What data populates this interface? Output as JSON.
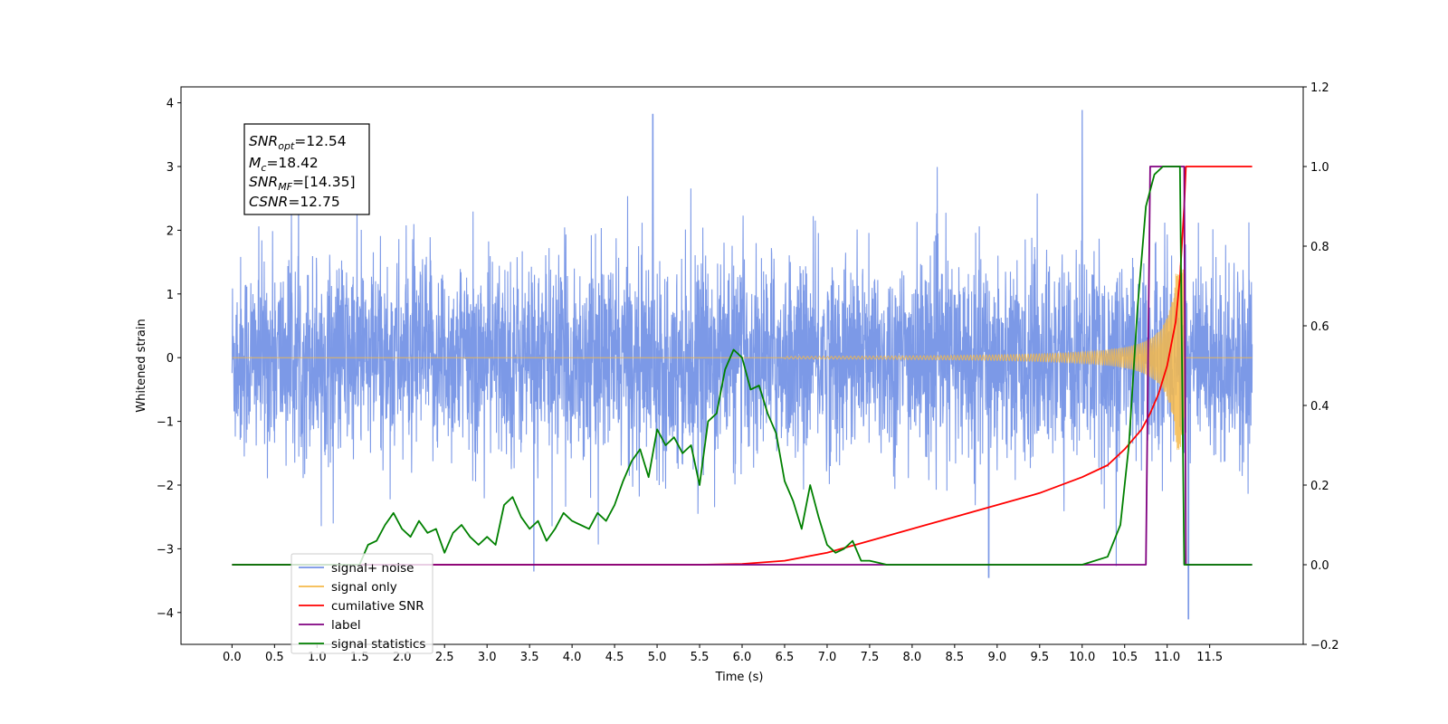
{
  "chart_data": {
    "type": "line",
    "xlabel": "Time (s)",
    "ylabel": "Whitened strain",
    "xlim": [
      -0.6,
      12.6
    ],
    "ylim_left": [
      -4.5,
      4.25
    ],
    "ylim_right": [
      -0.2,
      1.2
    ],
    "x_ticks": [
      "0.0",
      "0.5",
      "1.0",
      "1.5",
      "2.0",
      "2.5",
      "3.0",
      "3.5",
      "4.0",
      "4.5",
      "5.0",
      "5.5",
      "6.0",
      "6.5",
      "7.0",
      "7.5",
      "8.0",
      "8.5",
      "9.0",
      "9.5",
      "10.0",
      "10.5",
      "11.0",
      "11.5"
    ],
    "y_ticks_left": [
      "4",
      "3",
      "2",
      "1",
      "0",
      "−1",
      "−2",
      "−3",
      "−4"
    ],
    "y_ticks_right": [
      "1.2",
      "1.0",
      "0.8",
      "0.6",
      "0.4",
      "0.2",
      "0.0",
      "−0.2"
    ],
    "grid": false,
    "legend_position": "lower-left",
    "legend": [
      "signal+ noise",
      "signal only",
      "cumilative SNR",
      "label",
      "signal statistics"
    ],
    "annotation": {
      "snr_opt": "=12.54",
      "mc": "=18.42",
      "snr_mf": "=[14.35]",
      "csnr": "=12.75"
    },
    "series": [
      {
        "name": "signal+ noise",
        "axis": "left",
        "color": "#7593e6",
        "style": "dense noise spanning 0.0-12.0 s, typical amplitude about +/-2, spikes near 3.8 at 4.95 s and 3.9 at 10.0 s, dip near -4.1 at 11.25 s"
      },
      {
        "name": "signal only",
        "axis": "left",
        "color": "#f5b94a",
        "style": "chirp, amplitude ~0 until 7 s, growing to about +/-1.4 at 11.15 s, ending at 11.2 s"
      },
      {
        "name": "cumilative SNR",
        "axis": "right",
        "color": "#ff0000",
        "x": [
          0.0,
          5.0,
          5.5,
          6.0,
          6.5,
          7.0,
          7.5,
          8.0,
          8.5,
          9.0,
          9.5,
          10.0,
          10.3,
          10.5,
          10.7,
          10.8,
          10.9,
          11.0,
          11.1,
          11.15,
          11.2,
          11.22,
          12.0
        ],
        "y": [
          0.0,
          0.0,
          0.0,
          0.002,
          0.01,
          0.03,
          0.06,
          0.09,
          0.12,
          0.15,
          0.18,
          0.22,
          0.25,
          0.29,
          0.34,
          0.38,
          0.43,
          0.5,
          0.61,
          0.72,
          0.9,
          1.0,
          1.0
        ]
      },
      {
        "name": "label",
        "axis": "right",
        "color": "#800080",
        "x": [
          0.0,
          10.75,
          10.8,
          11.2,
          11.22,
          12.0
        ],
        "y": [
          0.0,
          0.0,
          1.0,
          1.0,
          0.0,
          0.0
        ]
      },
      {
        "name": "signal statistics",
        "axis": "right",
        "color": "#008000",
        "x": [
          0.0,
          1.5,
          1.6,
          1.7,
          1.8,
          1.9,
          2.0,
          2.1,
          2.2,
          2.3,
          2.4,
          2.5,
          2.6,
          2.7,
          2.8,
          2.9,
          3.0,
          3.1,
          3.2,
          3.3,
          3.4,
          3.5,
          3.6,
          3.7,
          3.8,
          3.9,
          4.0,
          4.1,
          4.2,
          4.3,
          4.4,
          4.5,
          4.6,
          4.7,
          4.8,
          4.9,
          5.0,
          5.1,
          5.2,
          5.3,
          5.4,
          5.5,
          5.6,
          5.7,
          5.8,
          5.9,
          6.0,
          6.1,
          6.2,
          6.3,
          6.4,
          6.5,
          6.6,
          6.7,
          6.8,
          6.9,
          7.0,
          7.1,
          7.2,
          7.3,
          7.4,
          7.5,
          7.6,
          7.7,
          7.8,
          8.0,
          8.3,
          9.0,
          10.0,
          10.3,
          10.45,
          10.55,
          10.65,
          10.75,
          10.85,
          10.95,
          11.0,
          11.1,
          11.15,
          11.2,
          11.25,
          12.0
        ],
        "y": [
          0.0,
          0.0,
          0.05,
          0.06,
          0.1,
          0.13,
          0.09,
          0.07,
          0.11,
          0.08,
          0.09,
          0.03,
          0.08,
          0.1,
          0.07,
          0.05,
          0.07,
          0.05,
          0.15,
          0.17,
          0.12,
          0.09,
          0.11,
          0.06,
          0.09,
          0.13,
          0.11,
          0.1,
          0.09,
          0.13,
          0.11,
          0.15,
          0.21,
          0.26,
          0.29,
          0.22,
          0.34,
          0.3,
          0.32,
          0.28,
          0.3,
          0.2,
          0.36,
          0.38,
          0.49,
          0.54,
          0.52,
          0.44,
          0.45,
          0.38,
          0.33,
          0.21,
          0.16,
          0.09,
          0.2,
          0.12,
          0.05,
          0.03,
          0.04,
          0.06,
          0.01,
          0.01,
          0.005,
          0.0,
          0.0,
          0.0,
          0.0,
          0.0,
          0.0,
          0.02,
          0.1,
          0.3,
          0.64,
          0.9,
          0.98,
          1.0,
          1.0,
          1.0,
          1.0,
          0.0,
          0.0,
          0.0
        ]
      }
    ]
  }
}
